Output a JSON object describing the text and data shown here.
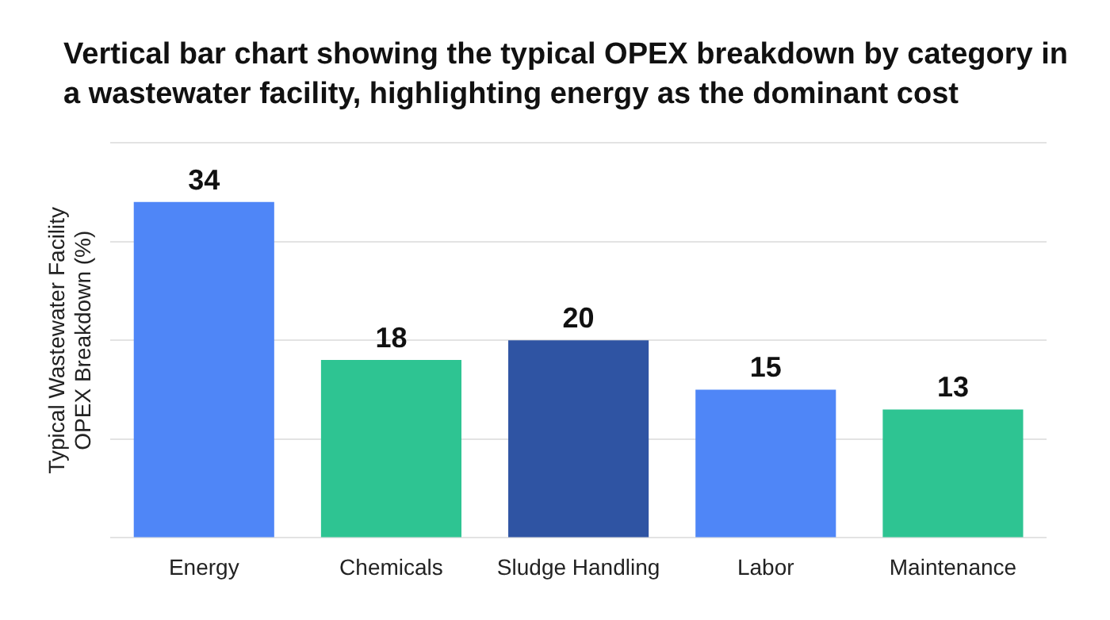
{
  "chart_data": {
    "type": "bar",
    "title": "Vertical bar chart showing the typical OPEX breakdown by category in a wastewater facility, highlighting energy as the dominant cost",
    "ylabel": "Typical Wastewater Facility OPEX Breakdown (%)",
    "categories": [
      "Energy",
      "Chemicals",
      "Sludge Handling",
      "Labor",
      "Maintenance"
    ],
    "values": [
      34,
      18,
      20,
      15,
      13
    ],
    "colors": [
      "#4f86f7",
      "#2ec492",
      "#2f54a3",
      "#4f86f7",
      "#2ec492"
    ],
    "ylim": [
      0,
      40
    ],
    "yticks": [
      {
        "value": 0,
        "label": null
      },
      {
        "value": 10,
        "label": null
      },
      {
        "value": 20,
        "label": null
      },
      {
        "value": 30,
        "label": null
      },
      {
        "value": 40,
        "label": null
      }
    ],
    "tick_labels": "x",
    "grid": "y",
    "legend": false,
    "data_labels": true
  }
}
